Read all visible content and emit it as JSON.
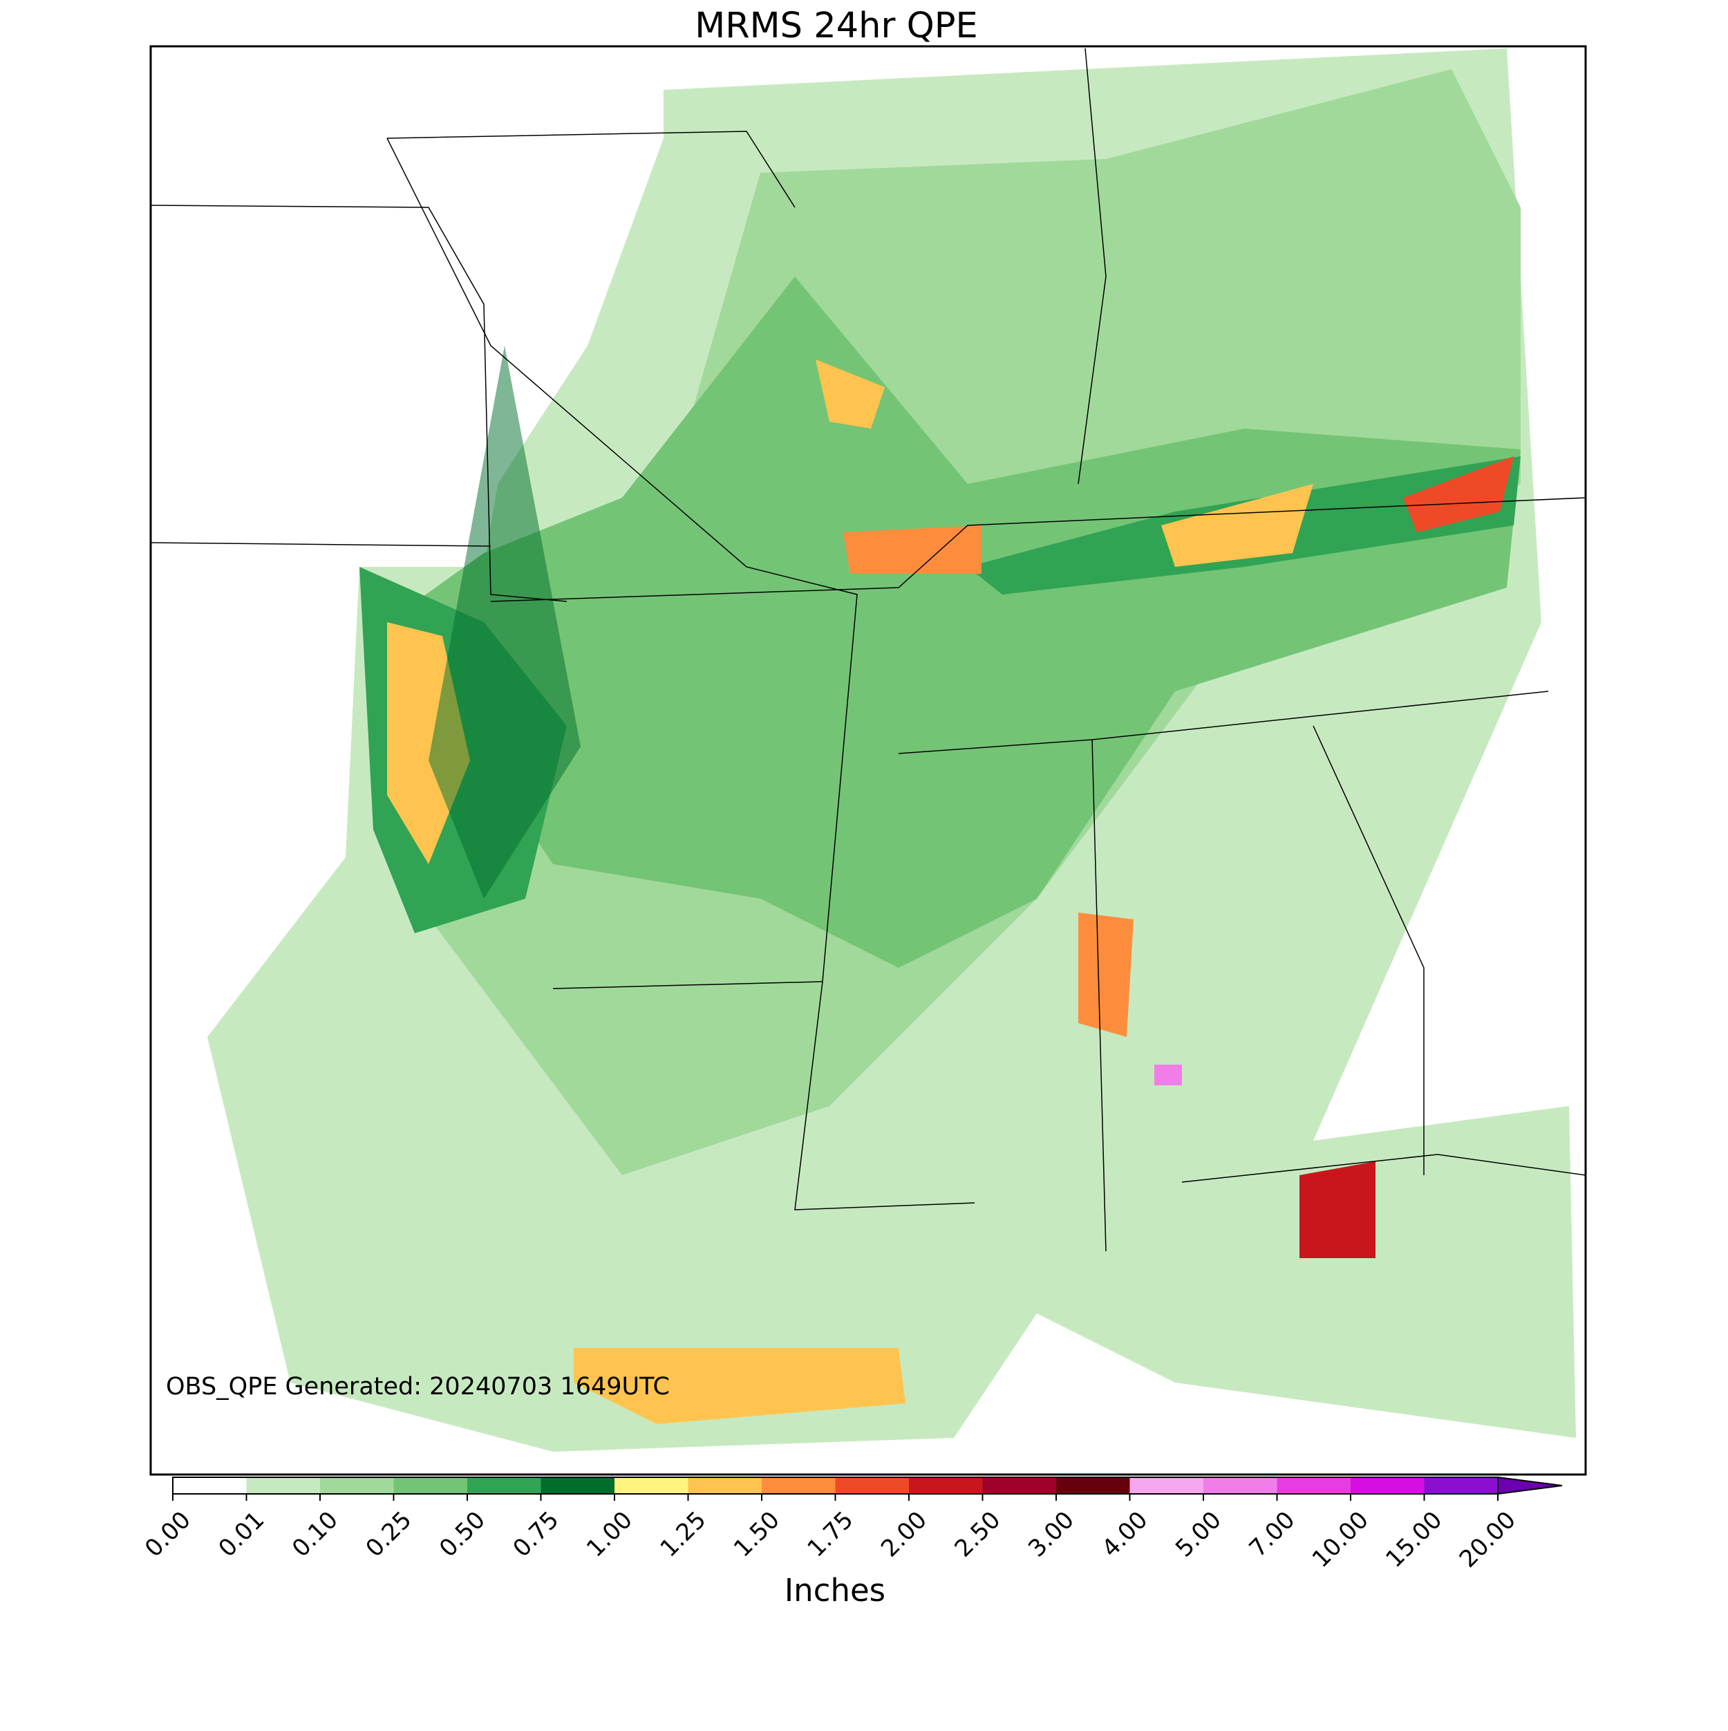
{
  "chart_data": {
    "type": "colorbar",
    "title": "MRMS 24hr QPE",
    "annotation": "OBS_QPE Generated: 20240703 1649UTC",
    "xlabel": "Inches",
    "ticks": [
      {
        "value": 0,
        "label": "0.00"
      },
      {
        "value": 0.01,
        "label": "0.01"
      },
      {
        "value": 0.1,
        "label": "0.10"
      },
      {
        "value": 0.25,
        "label": "0.25"
      },
      {
        "value": 0.5,
        "label": "0.50"
      },
      {
        "value": 0.75,
        "label": "0.75"
      },
      {
        "value": 1,
        "label": "1.00"
      },
      {
        "value": 1.25,
        "label": "1.25"
      },
      {
        "value": 1.5,
        "label": "1.50"
      },
      {
        "value": 1.75,
        "label": "1.75"
      },
      {
        "value": 2,
        "label": "2.00"
      },
      {
        "value": 2.5,
        "label": "2.50"
      },
      {
        "value": 3,
        "label": "3.00"
      },
      {
        "value": 4,
        "label": "4.00"
      },
      {
        "value": 5,
        "label": "5.00"
      },
      {
        "value": 7,
        "label": "7.00"
      },
      {
        "value": 10,
        "label": "10.00"
      },
      {
        "value": 15,
        "label": "15.00"
      },
      {
        "value": 20,
        "label": "20.00"
      }
    ],
    "colors": [
      "#ffffff",
      "#c7e9c0",
      "#a1d99b",
      "#74c476",
      "#31a354",
      "#006d2c",
      "#fff480",
      "#fec44f",
      "#fd8d3c",
      "#ef4a28",
      "#c9161c",
      "#a0002c",
      "#67000d",
      "#f7a6f0",
      "#f07ee8",
      "#e63ce0",
      "#d40fe0",
      "#8c0fd0"
    ],
    "extend_color": "#6a00b0"
  }
}
